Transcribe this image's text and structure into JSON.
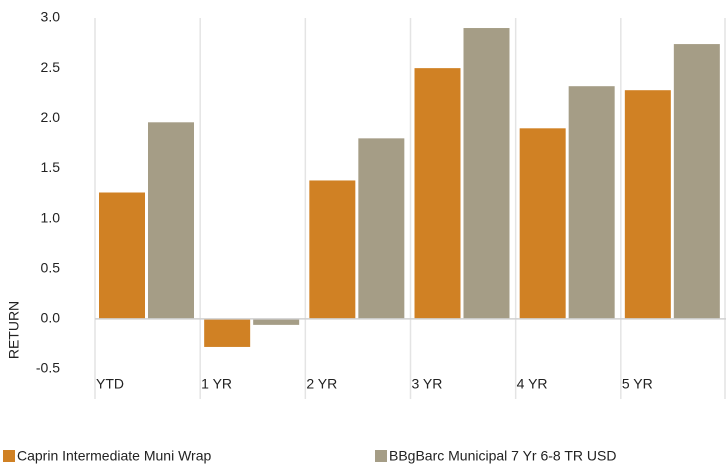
{
  "chart_data": {
    "type": "bar",
    "y_label": "RETURN",
    "categories": [
      "YTD",
      "1 YR",
      "2 YR",
      "3 YR",
      "4 YR",
      "5 YR"
    ],
    "series": [
      {
        "name": "Caprin Intermediate Muni Wrap",
        "color": "#d08124",
        "values": [
          1.26,
          -0.28,
          1.38,
          2.5,
          1.9,
          2.28
        ]
      },
      {
        "name": "BBgBarc Municipal 7 Yr 6-8 TR USD",
        "color": "#a59d86",
        "values": [
          1.96,
          -0.06,
          1.8,
          2.9,
          2.32,
          2.74
        ]
      }
    ],
    "ylim": [
      -0.5,
      3.0
    ],
    "yticks": [
      -0.5,
      {
        "value": 0,
        "label": "0.0"
      },
      0.5,
      {
        "value": 1,
        "label": "1.0"
      },
      1.5,
      {
        "value": 2,
        "label": "2.0"
      },
      2.5,
      {
        "value": 3,
        "label": "3.0"
      }
    ],
    "grid": true
  }
}
